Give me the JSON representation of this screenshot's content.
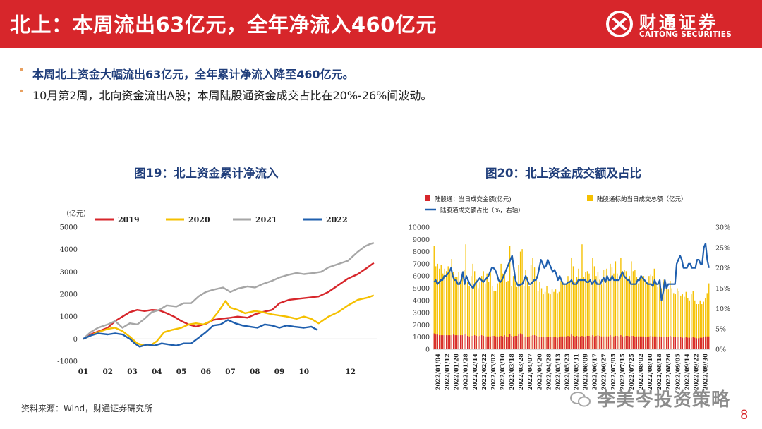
{
  "header": {
    "title": "北上：本周流出63亿元，全年净流入460亿元",
    "bg_color": "#d7262b"
  },
  "logo": {
    "cn": "财通证券",
    "en": "CAITONG SECURITIES"
  },
  "bullets": [
    "本周北上资金大幅流出63亿元，全年累计净流入降至460亿元。",
    "10月第2周，北向资金流出A股；本周陆股通资金成交占比在20%-26%间波动。"
  ],
  "chart_titles": {
    "left": "图19：北上资金累计净流入",
    "right": "图20：北上资金成交额及占比"
  },
  "source": "资料来源：Wind，财通证券研究所",
  "watermark": "李美岑投资策略",
  "page_number": "8",
  "chart_data": [
    {
      "type": "line",
      "ylabel": "（亿元）",
      "ylim": [
        -1000,
        5000
      ],
      "yticks": [
        -1000,
        0,
        1000,
        2000,
        3000,
        4000,
        5000
      ],
      "xticks": [
        "01",
        "02",
        "03",
        "04",
        "05",
        "06",
        "07",
        "08",
        "09",
        "10",
        "12"
      ],
      "x_unit": "month",
      "series": [
        {
          "name": "2019",
          "color": "#d7262b",
          "points": [
            [
              1,
              0
            ],
            [
              1.3,
              200
            ],
            [
              1.6,
              330
            ],
            [
              2,
              500
            ],
            [
              2.3,
              800
            ],
            [
              2.6,
              1000
            ],
            [
              2.9,
              1200
            ],
            [
              3.2,
              1300
            ],
            [
              3.5,
              1250
            ],
            [
              3.8,
              1300
            ],
            [
              4.1,
              1280
            ],
            [
              4.4,
              1150
            ],
            [
              4.7,
              1000
            ],
            [
              5.0,
              800
            ],
            [
              5.3,
              650
            ],
            [
              5.6,
              550
            ],
            [
              6.0,
              680
            ],
            [
              6.3,
              850
            ],
            [
              6.6,
              900
            ],
            [
              7.0,
              950
            ],
            [
              7.3,
              1000
            ],
            [
              7.7,
              950
            ],
            [
              8.0,
              1100
            ],
            [
              8.3,
              1200
            ],
            [
              8.7,
              1300
            ],
            [
              9.0,
              1600
            ],
            [
              9.4,
              1750
            ],
            [
              9.8,
              1800
            ],
            [
              10.2,
              1850
            ],
            [
              10.6,
              1900
            ],
            [
              11.0,
              2100
            ],
            [
              11.4,
              2400
            ],
            [
              11.8,
              2700
            ],
            [
              12.2,
              2900
            ],
            [
              12.6,
              3200
            ],
            [
              12.85,
              3400
            ]
          ]
        },
        {
          "name": "2020",
          "color": "#f5c000",
          "points": [
            [
              1,
              0
            ],
            [
              1.3,
              150
            ],
            [
              1.6,
              300
            ],
            [
              2,
              450
            ],
            [
              2.3,
              500
            ],
            [
              2.6,
              350
            ],
            [
              2.9,
              100
            ],
            [
              3.2,
              -200
            ],
            [
              3.5,
              -300
            ],
            [
              3.8,
              -250
            ],
            [
              4.0,
              -100
            ],
            [
              4.3,
              300
            ],
            [
              4.6,
              400
            ],
            [
              5.0,
              500
            ],
            [
              5.3,
              650
            ],
            [
              5.6,
              700
            ],
            [
              5.9,
              650
            ],
            [
              6.2,
              800
            ],
            [
              6.5,
              1200
            ],
            [
              6.8,
              1700
            ],
            [
              7.0,
              1400
            ],
            [
              7.3,
              1300
            ],
            [
              7.6,
              1150
            ],
            [
              8.0,
              1250
            ],
            [
              8.3,
              1200
            ],
            [
              8.7,
              1100
            ],
            [
              9.0,
              1050
            ],
            [
              9.3,
              1000
            ],
            [
              9.7,
              900
            ],
            [
              10.0,
              1000
            ],
            [
              10.3,
              900
            ],
            [
              10.6,
              700
            ],
            [
              11.0,
              1000
            ],
            [
              11.4,
              1200
            ],
            [
              11.8,
              1500
            ],
            [
              12.2,
              1750
            ],
            [
              12.6,
              1850
            ],
            [
              12.85,
              1950
            ]
          ]
        },
        {
          "name": "2021",
          "color": "#a6a6a6",
          "points": [
            [
              1,
              0
            ],
            [
              1.3,
              300
            ],
            [
              1.6,
              500
            ],
            [
              2,
              650
            ],
            [
              2.3,
              800
            ],
            [
              2.6,
              500
            ],
            [
              2.9,
              700
            ],
            [
              3.2,
              650
            ],
            [
              3.5,
              900
            ],
            [
              3.8,
              1200
            ],
            [
              4.1,
              1300
            ],
            [
              4.4,
              1500
            ],
            [
              4.8,
              1450
            ],
            [
              5.1,
              1600
            ],
            [
              5.4,
              1600
            ],
            [
              5.7,
              1900
            ],
            [
              6.0,
              2100
            ],
            [
              6.3,
              2200
            ],
            [
              6.7,
              2300
            ],
            [
              7.0,
              2100
            ],
            [
              7.3,
              2250
            ],
            [
              7.7,
              2350
            ],
            [
              8.0,
              2300
            ],
            [
              8.3,
              2450
            ],
            [
              8.7,
              2600
            ],
            [
              9.0,
              2750
            ],
            [
              9.3,
              2850
            ],
            [
              9.7,
              2950
            ],
            [
              10.0,
              2900
            ],
            [
              10.4,
              2950
            ],
            [
              10.7,
              3000
            ],
            [
              11.0,
              3200
            ],
            [
              11.4,
              3350
            ],
            [
              11.8,
              3500
            ],
            [
              12.2,
              3900
            ],
            [
              12.5,
              4150
            ],
            [
              12.7,
              4250
            ],
            [
              12.85,
              4300
            ]
          ]
        },
        {
          "name": "2022",
          "color": "#1f5fae",
          "points": [
            [
              1,
              0
            ],
            [
              1.3,
              150
            ],
            [
              1.6,
              250
            ],
            [
              2,
              200
            ],
            [
              2.3,
              250
            ],
            [
              2.6,
              200
            ],
            [
              2.9,
              0
            ],
            [
              3.1,
              -200
            ],
            [
              3.3,
              -350
            ],
            [
              3.6,
              -250
            ],
            [
              3.9,
              -300
            ],
            [
              4.2,
              -200
            ],
            [
              4.5,
              -250
            ],
            [
              4.8,
              -300
            ],
            [
              5.1,
              -200
            ],
            [
              5.4,
              -200
            ],
            [
              5.7,
              50
            ],
            [
              6.0,
              300
            ],
            [
              6.3,
              600
            ],
            [
              6.6,
              650
            ],
            [
              6.9,
              850
            ],
            [
              7.2,
              700
            ],
            [
              7.5,
              600
            ],
            [
              7.8,
              550
            ],
            [
              8.1,
              500
            ],
            [
              8.4,
              650
            ],
            [
              8.7,
              600
            ],
            [
              9.0,
              500
            ],
            [
              9.3,
              600
            ],
            [
              9.6,
              550
            ],
            [
              10.0,
              500
            ],
            [
              10.3,
              550
            ],
            [
              10.55,
              400
            ]
          ]
        }
      ]
    },
    {
      "type": "bar",
      "legend": [
        "陆股通：当日成交金额(亿元)",
        "陆股通标的当日成交总额（亿元）",
        "陆股通成交额占比（%，右轴）"
      ],
      "y_left": [
        0,
        10000
      ],
      "y_left_ticks": [
        0,
        1000,
        2000,
        3000,
        4000,
        5000,
        6000,
        7000,
        8000,
        9000,
        10000
      ],
      "y_right": [
        0,
        30
      ],
      "y_right_ticks": [
        "0%",
        "5%",
        "10%",
        "15%",
        "20%",
        "25%",
        "30%"
      ],
      "x_labels": [
        "2022/01/04",
        "2022/01/12",
        "2022/01/20",
        "2022/01/28",
        "2022/02/14",
        "2022/02/22",
        "2022/03/02",
        "2022/03/10",
        "2022/03/18",
        "2022/03/28",
        "2022/04/07",
        "2022/04/20",
        "2022/04/28",
        "2022/05/13",
        "2022/05/23",
        "2022/05/31",
        "2022/06/09",
        "2022/06/17",
        "2022/06/27",
        "2022/07/05",
        "2022/07/15",
        "2022/07/25",
        "2022/08/02",
        "2022/08/10",
        "2022/08/18",
        "2022/08/26",
        "2022/09/05",
        "2022/09/14",
        "2022/09/22",
        "2022/09/30"
      ],
      "colors": {
        "northbound": "#d7262b",
        "total": "#f5c000",
        "ratio": "#1f5fae"
      },
      "total_turnover": [
        8500,
        6800,
        7000,
        6600,
        6900,
        6200,
        6600,
        6400,
        6800,
        6300,
        7400,
        6300,
        5900,
        5900,
        6300,
        5600,
        6000,
        6500,
        8600,
        5500,
        5200,
        6000,
        7000,
        6400,
        5700,
        5000,
        5500,
        6000,
        6400,
        5400,
        6200,
        5500,
        6300,
        5200,
        4800,
        4800,
        5400,
        5700,
        7000,
        6200,
        6200,
        5500,
        5600,
        8500,
        5200,
        6000,
        6000,
        5100,
        6900,
        8000,
        8200,
        5200,
        6500,
        5900,
        5200,
        6900,
        7500,
        6700,
        6000,
        4800,
        5500,
        5000,
        4500,
        4700,
        5200,
        4600,
        4500,
        4900,
        4700,
        4900,
        4600,
        4700,
        5600,
        5500,
        5400,
        5300,
        6000,
        5600,
        7500,
        6800,
        5500,
        5900,
        6600,
        5800,
        8600,
        5900,
        6300,
        6400,
        6200,
        5600,
        7500,
        6800,
        6000,
        6300,
        5700,
        5300,
        6500,
        6500,
        6600,
        5700,
        7000,
        6700,
        6200,
        7200,
        6200,
        5700,
        7500,
        6400,
        6500,
        6400,
        5800,
        6000,
        7200,
        6400,
        6500,
        5900,
        5400,
        5800,
        6000,
        6000,
        5500,
        5400,
        6000,
        6100,
        6000,
        6600,
        5400,
        5100,
        5400,
        5000,
        5700,
        5400,
        5200,
        4900,
        5600,
        5000,
        4600,
        4500,
        5000,
        4800,
        4400,
        4500,
        4300,
        4700,
        4200,
        4000,
        4500,
        4800,
        4000,
        3700,
        3700,
        4000,
        3700,
        3900,
        4200,
        4600,
        5400
      ],
      "northbound_turnover": [
        1300,
        1200,
        1200,
        1150,
        1150,
        1150,
        1150,
        1150,
        1150,
        1150,
        1150,
        1200,
        1150,
        1150,
        1150,
        1150,
        1150,
        1200,
        1250,
        1100,
        1050,
        1100,
        1100,
        1150,
        1100,
        1050,
        1100,
        1150,
        1100,
        1050,
        1050,
        1050,
        1050,
        1100,
        1100,
        1050,
        1050,
        1050,
        1100,
        1050,
        1150,
        1050,
        1000,
        1250,
        1100,
        1050,
        1100,
        1100,
        1200,
        1300,
        1200,
        1000,
        1050,
        1000,
        1050,
        1100,
        1150,
        1150,
        1100,
        1000,
        1000,
        1000,
        1000,
        1000,
        1000,
        1000,
        1000,
        1000,
        1000,
        1000,
        950,
        1000,
        1050,
        1050,
        1050,
        1050,
        1100,
        1050,
        1200,
        1100,
        1000,
        1100,
        1050,
        1050,
        1100,
        1050,
        1050,
        1100,
        1100,
        1050,
        1150,
        1050,
        1100,
        1150,
        1100,
        1050,
        1050,
        1050,
        1050,
        1050,
        1150,
        1050,
        1050,
        1100,
        1100,
        1050,
        1150,
        1050,
        1050,
        1100,
        1100,
        1050,
        1100,
        1100,
        1000,
        1050,
        1050,
        1050,
        1050,
        1050,
        1000,
        1000,
        1050,
        1100,
        1050,
        1050,
        1050,
        1000,
        1050,
        1000,
        1000,
        1000,
        1000,
        1000,
        1100,
        1000,
        1000,
        1000,
        1000,
        1000,
        1000,
        950,
        950,
        1000,
        950,
        950,
        950,
        1000,
        950,
        900,
        900,
        950,
        950,
        1000,
        1050,
        1050,
        1050
      ],
      "ratio_pct": [
        16.5,
        17,
        16,
        16.5,
        17,
        17,
        18,
        18,
        18.5,
        19,
        20,
        18,
        17,
        17,
        16,
        16,
        17,
        19,
        16,
        18,
        17,
        16,
        15.5,
        15,
        16,
        16.5,
        17,
        17.5,
        17,
        16.5,
        17,
        17.5,
        18,
        19,
        20,
        20,
        19.5,
        18.5,
        17,
        16.5,
        17,
        18,
        19,
        20,
        21,
        22,
        23,
        20,
        17,
        16,
        15.5,
        16,
        16,
        17,
        18,
        17,
        16,
        16,
        16.5,
        17,
        17,
        18,
        20,
        22,
        21,
        20,
        20.5,
        22,
        21,
        20,
        19,
        19.5,
        18.5,
        17,
        18,
        17,
        16,
        16,
        16,
        16.5,
        16.5,
        17,
        16,
        16,
        16,
        17,
        17,
        17,
        17,
        17,
        16.5,
        16.5,
        17,
        16,
        16.5,
        17,
        16,
        16,
        16,
        17,
        17.5,
        16.5,
        18,
        17,
        17,
        18,
        17,
        17,
        17,
        17,
        18,
        19,
        18,
        17.5,
        17,
        17,
        16,
        16,
        16,
        16,
        17,
        17,
        18,
        17.5,
        17,
        16.5,
        16,
        16,
        16,
        15.5,
        17,
        16,
        16,
        17,
        12,
        14,
        17,
        15,
        16,
        16,
        16,
        16,
        16,
        21,
        22,
        23,
        22,
        20,
        20,
        20,
        21,
        21,
        20,
        20,
        20,
        22,
        22,
        21,
        21,
        25,
        26,
        22,
        20
      ]
    }
  ]
}
